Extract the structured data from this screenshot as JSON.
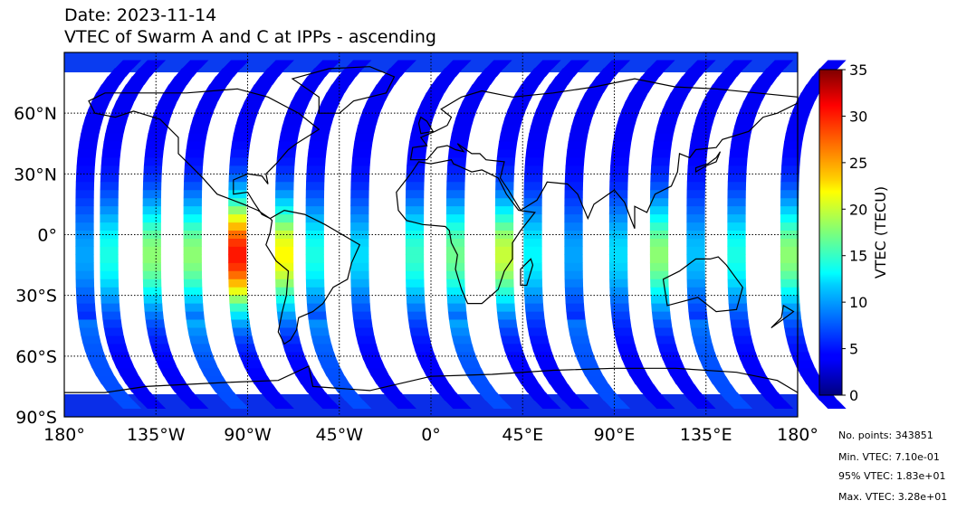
{
  "header": {
    "date_line": "Date: 2023-11-14",
    "title": "VTEC of Swarm A and C at IPPs - ascending"
  },
  "stats": {
    "points": "No. points: 343851",
    "min": "Min. VTEC: 7.10e-01",
    "p95": "95% VTEC: 1.83e+01",
    "max": "Max. VTEC: 3.28e+01"
  },
  "chart_data": {
    "type": "map",
    "projection": "equirectangular",
    "lon_range": [
      -180,
      180
    ],
    "lat_range": [
      -90,
      90
    ],
    "grid": "dotted",
    "x_ticks": [
      -180,
      -135,
      -90,
      -45,
      0,
      45,
      90,
      135,
      180
    ],
    "x_tick_labels": [
      "180°",
      "135°W",
      "90°W",
      "45°W",
      "0°",
      "45°E",
      "90°E",
      "135°E",
      "180°"
    ],
    "y_ticks": [
      60,
      30,
      0,
      -30,
      -60,
      -90
    ],
    "y_tick_labels": [
      "60°N",
      "30°N",
      "0°",
      "30°S",
      "60°S",
      "90°S"
    ],
    "colormap": "jet",
    "colorbar": {
      "label": "VTEC (TECU)",
      "range": [
        0,
        35
      ],
      "ticks": [
        "0",
        "5",
        "10",
        "15",
        "20",
        "25",
        "30",
        "35"
      ]
    },
    "tracks": [
      {
        "lon": -170,
        "peak": 10
      },
      {
        "lon": -158,
        "peak": 14
      },
      {
        "lon": -137,
        "peak": 18
      },
      {
        "lon": -117,
        "peak": 18
      },
      {
        "lon": -95,
        "peak": 30
      },
      {
        "lon": -72,
        "peak": 22
      },
      {
        "lon": -57,
        "peak": 14
      },
      {
        "lon": -35,
        "peak": 12
      },
      {
        "lon": -8,
        "peak": 15
      },
      {
        "lon": 12,
        "peak": 17
      },
      {
        "lon": 36,
        "peak": 20
      },
      {
        "lon": 50,
        "peak": 13
      },
      {
        "lon": 70,
        "peak": 10
      },
      {
        "lon": 92,
        "peak": 12
      },
      {
        "lon": 112,
        "peak": 18
      },
      {
        "lon": 130,
        "peak": 11
      },
      {
        "lon": 150,
        "peak": 14
      },
      {
        "lon": 176,
        "peak": 18
      }
    ]
  }
}
